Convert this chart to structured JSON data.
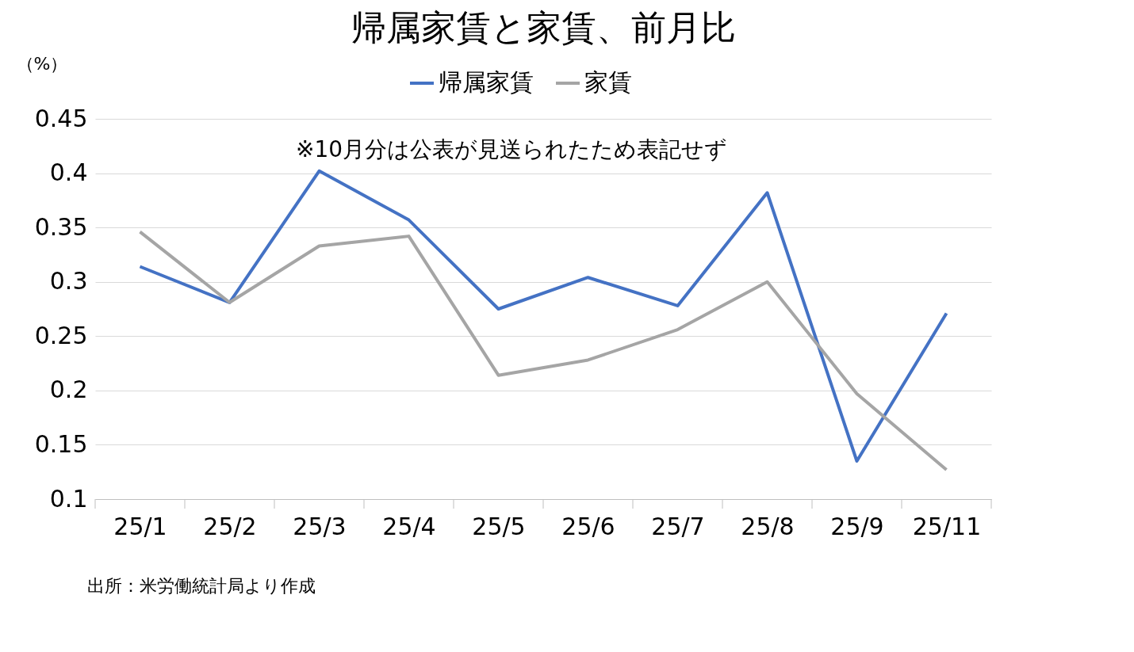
{
  "chart_data": {
    "type": "line",
    "title": "帰属家賃と家賃、前月比",
    "ylabel": "（%）",
    "categories": [
      "25/1",
      "25/2",
      "25/3",
      "25/4",
      "25/5",
      "25/6",
      "25/7",
      "25/8",
      "25/9",
      "25/11"
    ],
    "series": [
      {
        "name": "帰属家賃",
        "color": "#4472c4",
        "values": [
          0.314,
          0.281,
          0.402,
          0.357,
          0.275,
          0.304,
          0.278,
          0.382,
          0.135,
          0.271
        ]
      },
      {
        "name": "家賃",
        "color": "#a5a5a5",
        "values": [
          0.346,
          0.281,
          0.333,
          0.342,
          0.214,
          0.228,
          0.256,
          0.3,
          0.197,
          0.127
        ]
      }
    ],
    "ylim": [
      0.1,
      0.45
    ],
    "yticks": [
      0.1,
      0.15,
      0.2,
      0.25,
      0.3,
      0.35,
      0.4,
      0.45
    ],
    "grid": "y",
    "legend": "top",
    "marker": "none",
    "line_style": "solid",
    "annotations": [
      "※10月分は公表が見送られたため表記せず",
      "出所：米労働統計局より作成"
    ]
  }
}
